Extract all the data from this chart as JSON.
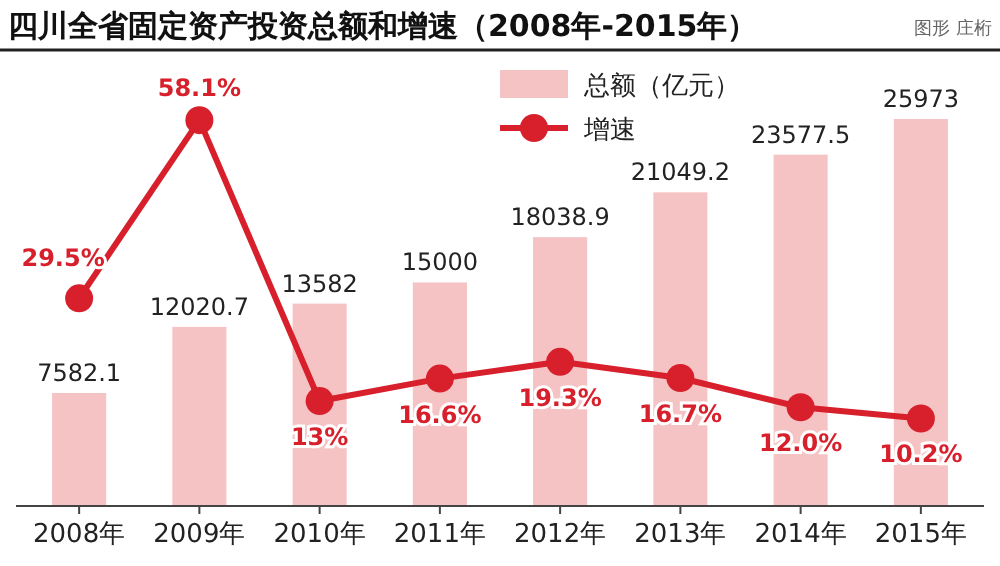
{
  "chart_data": {
    "type": "bar",
    "title": "四川全省固定资产投资总额和增速（2008年-2015年）",
    "annotations": [
      "图形 庄桁"
    ],
    "categories": [
      "2008年",
      "2009年",
      "2010年",
      "2011年",
      "2012年",
      "2013年",
      "2014年",
      "2015年"
    ],
    "series": [
      {
        "name": "总额（亿元）",
        "type": "bar",
        "color": "#f6c3c4",
        "values": [
          7582.1,
          12020.7,
          13582,
          15000,
          18038.9,
          21049.2,
          23577.5,
          25973
        ],
        "value_labels": [
          "7582.1",
          "12020.7",
          "13582",
          "15000",
          "18038.9",
          "21049.2",
          "23577.5",
          "25973"
        ]
      },
      {
        "name": "增速",
        "type": "line",
        "axis": "y2",
        "color": "#d7202c",
        "values": [
          29.5,
          58.1,
          13,
          16.6,
          19.3,
          16.7,
          12.0,
          10.2
        ],
        "value_labels": [
          "29.5%",
          "58.1%",
          "13%",
          "16.6%",
          "19.3%",
          "16.7%",
          "12.0%",
          "10.2%"
        ]
      }
    ],
    "legend": "top right",
    "marker": "circle",
    "tick_labels": "x"
  }
}
